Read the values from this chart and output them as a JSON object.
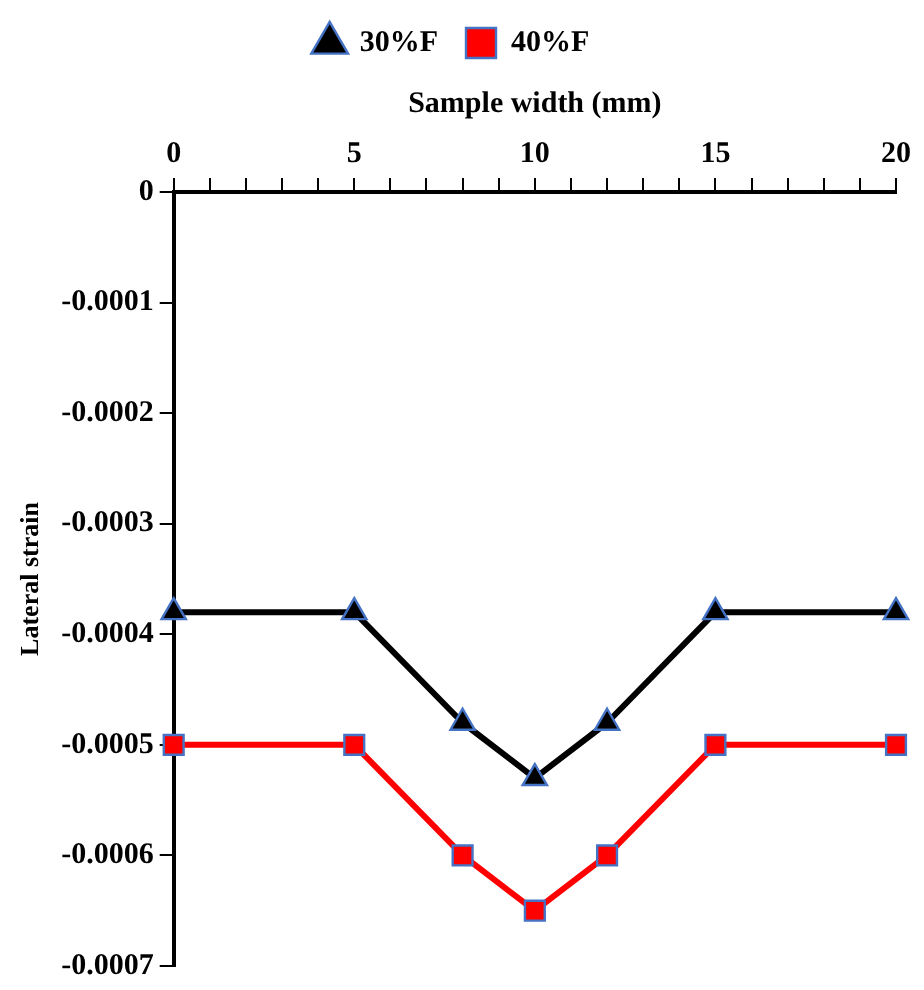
{
  "chart_data": {
    "type": "line",
    "xlabel": "Sample width (mm)",
    "ylabel": "Lateral strain",
    "xlim": [
      0,
      20
    ],
    "xticks": [
      0,
      {
        "value": 1,
        "label": null
      },
      {
        "value": 2,
        "label": null
      },
      {
        "value": 3,
        "label": null
      },
      {
        "value": 4,
        "label": null
      },
      5,
      {
        "value": 6,
        "label": null
      },
      {
        "value": 7,
        "label": null
      },
      {
        "value": 8,
        "label": null
      },
      {
        "value": 9,
        "label": null
      },
      10,
      {
        "value": 11,
        "label": null
      },
      {
        "value": 12,
        "label": null
      },
      {
        "value": 13,
        "label": null
      },
      {
        "value": 14,
        "label": null
      },
      15,
      {
        "value": 16,
        "label": null
      },
      {
        "value": 17,
        "label": null
      },
      {
        "value": 18,
        "label": null
      },
      {
        "value": 19,
        "label": null
      },
      20
    ],
    "ylim": [
      -0.0007,
      0
    ],
    "yticks": [
      0,
      -0.0001,
      -0.0002,
      -0.0003,
      -0.0004,
      -0.0005,
      -0.0006,
      -0.0007
    ],
    "x": [
      0,
      5,
      8,
      10,
      12,
      15,
      20
    ],
    "series": [
      {
        "name": "30%F",
        "color": "#000000",
        "marker": "triangle",
        "values": [
          -0.00038,
          -0.00038,
          -0.00048,
          -0.00053,
          -0.00048,
          -0.00038,
          -0.00038
        ]
      },
      {
        "name": "40%F",
        "color": "#ff0000",
        "marker": "square",
        "values": [
          -0.0005,
          -0.0005,
          -0.0006,
          -0.00065,
          -0.0006,
          -0.0005,
          -0.0005
        ]
      }
    ],
    "grid": false,
    "legend": "top",
    "line_style": "solid"
  }
}
